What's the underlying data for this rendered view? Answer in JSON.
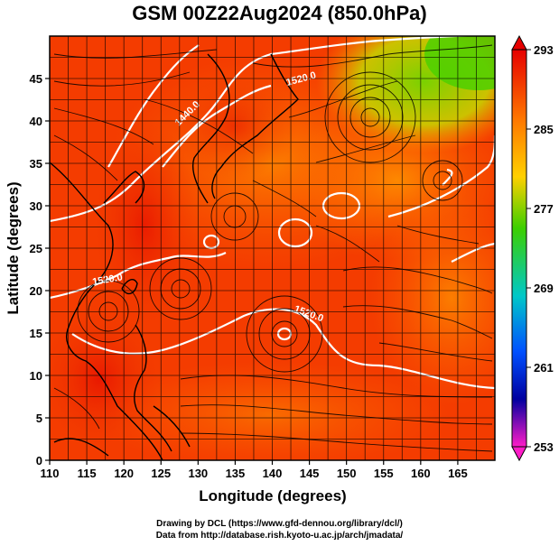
{
  "title": "GSM 00Z22Aug2024 (850.0hPa)",
  "chart_data": {
    "type": "heatmap",
    "variable_overlays": [
      "temperature shading",
      "streamlines",
      "geopotential height contours"
    ],
    "xlabel": "Longitude (degrees)",
    "ylabel": "Latitude  (degrees)",
    "xlim": [
      110,
      170
    ],
    "ylim": [
      0,
      50
    ],
    "x_ticks": [
      "110",
      "115",
      "120",
      "125",
      "130",
      "135",
      "140",
      "145",
      "150",
      "155",
      "160",
      "165"
    ],
    "y_ticks": [
      "0",
      "5",
      "10",
      "15",
      "20",
      "25",
      "30",
      "35",
      "40",
      "45"
    ],
    "grid": true,
    "colorbar": {
      "range": [
        253,
        293
      ],
      "labels": [
        "293",
        "285",
        "277",
        "269",
        "261",
        "253"
      ],
      "colors": [
        "#e60000",
        "#ff7a00",
        "#ffd000",
        "#3ccf00",
        "#00c8c8",
        "#0050ff",
        "#0000a0",
        "#ff1cc8"
      ]
    },
    "contour_labels": [
      "1440.0",
      "1520.0",
      "1520.0",
      "1520.0"
    ]
  },
  "credits": {
    "line1": "Drawing by DCL (https://www.gfd-dennou.org/library/dcl/)",
    "line2": "Data from http://database.rish.kyoto-u.ac.jp/arch/jmadata/"
  }
}
